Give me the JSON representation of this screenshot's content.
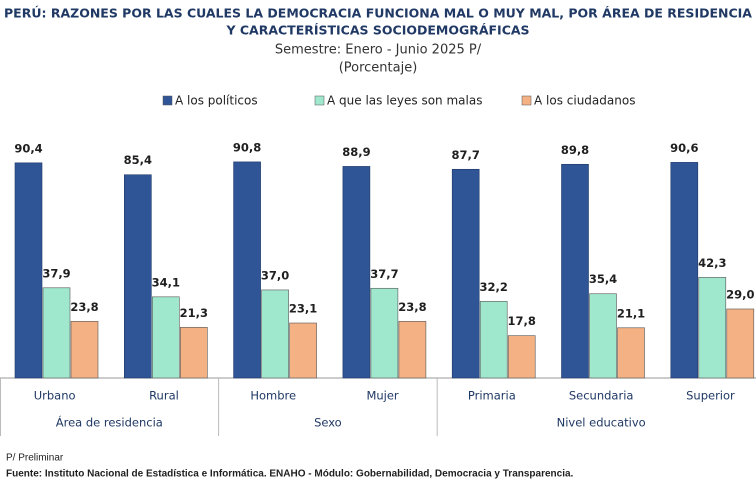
{
  "chart_data": {
    "type": "bar",
    "title": [
      "PERÚ: RAZONES POR LAS CUALES LA DEMOCRACIA FUNCIONA MAL O MUY MAL, POR ÁREA DE RESIDENCIA",
      "Y CARACTERÍSTICAS SOCIODEMOGRÁFICAS"
    ],
    "subtitle": [
      "Semestre: Enero - Junio 2025 P/",
      "(Porcentaje)"
    ],
    "groups": [
      {
        "name": "Área de residencia",
        "categories": [
          "Urbano",
          "Rural"
        ]
      },
      {
        "name": "Sexo",
        "categories": [
          "Hombre",
          "Mujer"
        ]
      },
      {
        "name": "Nivel educativo",
        "categories": [
          "Primaria",
          "Secundaria",
          "Superior"
        ]
      }
    ],
    "series": [
      {
        "name": "A los políticos",
        "color": "#2f5597",
        "values": [
          90.4,
          85.4,
          90.8,
          88.9,
          87.7,
          89.8,
          90.6
        ],
        "value_labels": [
          "90,4",
          "85,4",
          "90,8",
          "88,9",
          "87,7",
          "89,8",
          "90,6"
        ]
      },
      {
        "name": "A que las leyes son malas",
        "color": "#a0e8cd",
        "values": [
          37.9,
          34.1,
          37.0,
          37.7,
          32.2,
          35.4,
          42.3
        ],
        "value_labels": [
          "37,9",
          "34,1",
          "37,0",
          "37,7",
          "32,2",
          "35,4",
          "42,3"
        ]
      },
      {
        "name": "A los ciudadanos",
        "color": "#f4b183",
        "values": [
          23.8,
          21.3,
          23.1,
          23.8,
          17.8,
          21.1,
          29.0
        ],
        "value_labels": [
          "23,8",
          "21,3",
          "23,1",
          "23,8",
          "17,8",
          "21,1",
          "29,0"
        ]
      }
    ],
    "notes": [
      "P/ Preliminar",
      "Fuente: Instituto Nacional de Estadística e Informática.  ENAHO - Módulo: Gobernabilidad, Democracia y Transparencia."
    ]
  }
}
